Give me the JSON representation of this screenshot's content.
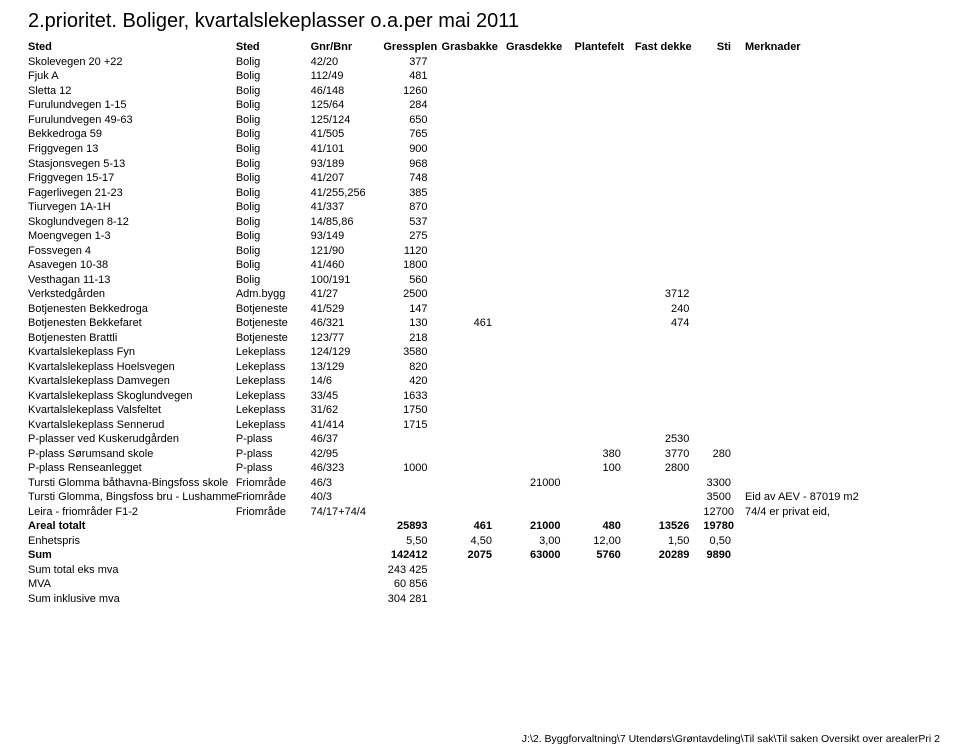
{
  "title": "2.prioritet. Boliger, kvartalslekeplasser o.a.per mai 2011",
  "headers": [
    "Sted",
    "Sted",
    "Gnr/Bnr",
    "Gressplen",
    "Grasbakke",
    "Grasdekke",
    "Plantefelt",
    "Fast dekke",
    "Sti",
    "Merknader"
  ],
  "rows": [
    {
      "sted": "Skolevegen 20 +22",
      "type": "Bolig",
      "gnr": "42/20",
      "g": "377"
    },
    {
      "sted": "Fjuk A",
      "type": "Bolig",
      "gnr": "112/49",
      "g": "481"
    },
    {
      "sted": "Sletta 12",
      "type": "Bolig",
      "gnr": "46/148",
      "g": "1260"
    },
    {
      "sted": "Furulundvegen 1-15",
      "type": "Bolig",
      "gnr": "125/64",
      "g": "284"
    },
    {
      "sted": "Furulundvegen 49-63",
      "type": "Bolig",
      "gnr": "125/124",
      "g": "650"
    },
    {
      "sted": "Bekkedroga 59",
      "type": "Bolig",
      "gnr": "41/505",
      "g": "765"
    },
    {
      "sted": "Friggvegen 13",
      "type": "Bolig",
      "gnr": "41/101",
      "g": "900"
    },
    {
      "sted": "Stasjonsvegen 5-13",
      "type": "Bolig",
      "gnr": "93/189",
      "g": "968"
    },
    {
      "sted": "Friggvegen 15-17",
      "type": "Bolig",
      "gnr": "41/207",
      "g": "748"
    },
    {
      "sted": "Fagerlivegen 21-23",
      "type": "Bolig",
      "gnr": "41/255,256",
      "g": "385"
    },
    {
      "sted": "Tiurvegen 1A-1H",
      "type": "Bolig",
      "gnr": "41/337",
      "g": "870"
    },
    {
      "sted": "Skoglundvegen 8-12",
      "type": "Bolig",
      "gnr": "14/85,86",
      "g": "537"
    },
    {
      "sted": "Moengvegen 1-3",
      "type": "Bolig",
      "gnr": "93/149",
      "g": "275"
    },
    {
      "sted": "Fossvegen 4",
      "type": "Bolig",
      "gnr": "121/90",
      "g": "1120"
    },
    {
      "sted": "Asavegen 10-38",
      "type": "Bolig",
      "gnr": "41/460",
      "g": "1800"
    },
    {
      "sted": "Vesthagan 11-13",
      "type": "Bolig",
      "gnr": "100/191",
      "g": "560"
    },
    {
      "sted": "Verkstedgården",
      "type": "Adm.bygg",
      "gnr": "41/27",
      "g": "2500",
      "fast": "3712"
    },
    {
      "sted": "Botjenesten Bekkedroga",
      "type": "Botjeneste",
      "gnr": "41/529",
      "g": "147",
      "fast": "240"
    },
    {
      "sted": "Botjenesten Bekkefaret",
      "type": "Botjeneste",
      "gnr": "46/321",
      "g": "130",
      "gb": "461",
      "fast": "474"
    },
    {
      "sted": "Botjenesten Brattli",
      "type": "Botjeneste",
      "gnr": "123/77",
      "g": "218"
    },
    {
      "sted": "Kvartalslekeplass Fyn",
      "type": "Lekeplass",
      "gnr": "124/129",
      "g": "3580"
    },
    {
      "sted": "Kvartalslekeplass Hoelsvegen",
      "type": "Lekeplass",
      "gnr": "13/129",
      "g": "820"
    },
    {
      "sted": "Kvartalslekeplass Damvegen",
      "type": "Lekeplass",
      "gnr": "14/6",
      "g": "420"
    },
    {
      "sted": "Kvartalslekeplass Skoglundvegen",
      "type": "Lekeplass",
      "gnr": "33/45",
      "g": "1633"
    },
    {
      "sted": "Kvartalslekeplass Valsfeltet",
      "type": "Lekeplass",
      "gnr": "31/62",
      "g": "1750"
    },
    {
      "sted": "Kvartalslekeplass Sennerud",
      "type": "Lekeplass",
      "gnr": "41/414",
      "g": "1715"
    },
    {
      "sted": "P-plasser ved Kuskerudgården",
      "type": "P-plass",
      "gnr": "46/37",
      "fast": "2530"
    },
    {
      "sted": "P-plass Sørumsand skole",
      "type": "P-plass",
      "gnr": "42/95",
      "pl": "380",
      "fast": "3770",
      "sti": "280"
    },
    {
      "sted": "P-plass Renseanlegget",
      "type": "P-plass",
      "gnr": "46/323",
      "g": "1000",
      "pl": "100",
      "fast": "2800"
    },
    {
      "sted": "Tursti Glomma båthavna-Bingsfoss skole",
      "type": "Friområde",
      "gnr": "46/3",
      "gd": "21000",
      "sti": "3300"
    },
    {
      "sted": "Tursti Glomma, Bingsfoss bru - Lushammeren",
      "type": "Friområde",
      "gnr": "40/3",
      "sti": "3500",
      "merk": "Eid av AEV - 87019 m2"
    },
    {
      "sted": "Leira - friområder F1-2",
      "type": "Friområde",
      "gnr": "74/17+74/4",
      "sti": "12700",
      "merk": "74/4 er privat eid,"
    }
  ],
  "summary": [
    {
      "label": "Areal totalt",
      "bold": true,
      "vals": {
        "g": "25893",
        "gb": "461",
        "gd": "21000",
        "pl": "480",
        "fast": "13526",
        "sti": "19780"
      }
    },
    {
      "label": "Enhetspris",
      "vals": {
        "g": "5,50",
        "gb": "4,50",
        "gd": "3,00",
        "pl": "12,00",
        "fast": "1,50",
        "sti": "0,50"
      }
    },
    {
      "label": "Sum",
      "bold": true,
      "vals": {
        "g": "142412",
        "gb": "2075",
        "gd": "63000",
        "pl": "5760",
        "fast": "20289",
        "sti": "9890"
      }
    },
    {
      "label": "Sum total eks mva",
      "amount": "243 425"
    },
    {
      "label": "MVA",
      "amount": "60 856"
    },
    {
      "label": "Sum inklusive mva",
      "amount": "304 281"
    }
  ],
  "footer": "J:\\2. Byggforvaltning\\7 Utendørs\\Grøntavdeling\\Til sak\\Til saken Oversikt over arealerPri 2"
}
